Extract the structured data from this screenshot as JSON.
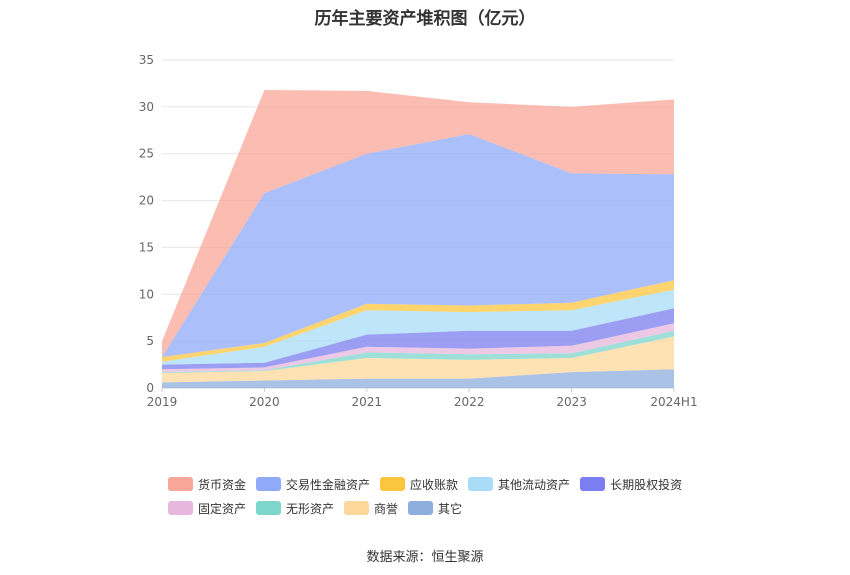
{
  "title": "历年主要资产堆积图（亿元）",
  "source": "数据来源：恒生聚源",
  "chart_data": {
    "type": "area",
    "stacked": true,
    "categories": [
      "2019",
      "2020",
      "2021",
      "2022",
      "2023",
      "2024H1"
    ],
    "ylim": [
      0,
      35
    ],
    "yticks": [
      "0",
      "5",
      "10",
      "15",
      "20",
      "25",
      "30",
      "35"
    ],
    "grid": true,
    "legend_position": "bottom",
    "series": [
      {
        "name": "其它",
        "color": "#8eaede",
        "values": [
          0.6,
          0.8,
          1.0,
          1.0,
          1.7,
          2.0
        ]
      },
      {
        "name": "商誉",
        "color": "#fdd89a",
        "values": [
          1.0,
          1.0,
          2.2,
          2.0,
          1.5,
          3.5
        ]
      },
      {
        "name": "无形资产",
        "color": "#7dd6cc",
        "values": [
          0.1,
          0.1,
          0.6,
          0.6,
          0.5,
          0.6
        ]
      },
      {
        "name": "固定资产",
        "color": "#e8b7dd",
        "values": [
          0.3,
          0.3,
          0.6,
          0.6,
          0.8,
          0.8
        ]
      },
      {
        "name": "长期股权投资",
        "color": "#7b7ef0",
        "values": [
          0.5,
          0.5,
          1.3,
          1.9,
          1.6,
          1.6
        ]
      },
      {
        "name": "其他流动资产",
        "color": "#a8dcf7",
        "values": [
          0.3,
          1.7,
          2.6,
          2.0,
          2.2,
          2.0
        ]
      },
      {
        "name": "应收账款",
        "color": "#fcc53e",
        "values": [
          0.5,
          0.4,
          0.7,
          0.7,
          0.8,
          1.0
        ]
      },
      {
        "name": "交易性金融资产",
        "color": "#8faaf8",
        "values": [
          0.0,
          16.0,
          16.0,
          18.3,
          13.8,
          11.3
        ]
      },
      {
        "name": "货币资金",
        "color": "#f9a598",
        "values": [
          1.7,
          11.0,
          6.7,
          3.4,
          7.1,
          8.0
        ]
      }
    ]
  },
  "legend": {
    "rows": [
      [
        "货币资金",
        "交易性金融资产",
        "应收账款",
        "其他流动资产",
        "长期股权投资"
      ],
      [
        "固定资产",
        "无形资产",
        "商誉",
        "其它"
      ]
    ]
  }
}
